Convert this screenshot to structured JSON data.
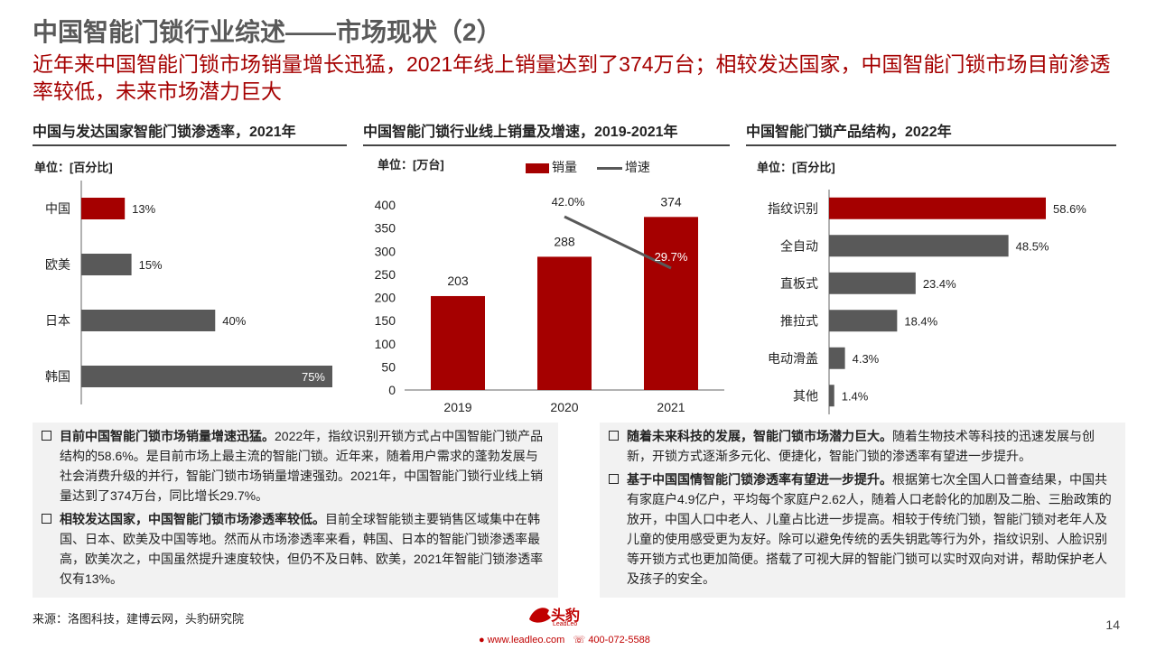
{
  "header": {
    "title": "中国智能门锁行业综述——市场现状（2）",
    "subtitle": "近年来中国智能门锁市场销量增长迅猛，2021年线上销量达到了374万台；相较发达国家，中国智能门锁市场目前渗透率较低，未来市场潜力巨大"
  },
  "colors": {
    "accent": "#a50000",
    "gray_bar": "#595959",
    "box_bg": "#f2f2f2"
  },
  "chart_data": [
    {
      "type": "bar",
      "orientation": "horizontal",
      "title": "中国与发达国家智能门锁渗透率，2021年",
      "unit_label": "单位：[百分比]",
      "categories": [
        "中国",
        "欧美",
        "日本",
        "韩国"
      ],
      "values": [
        13,
        15,
        40,
        75
      ],
      "value_labels": [
        "13%",
        "15%",
        "40%",
        "75%"
      ],
      "highlight_index": 0,
      "xlim": [
        0,
        75
      ]
    },
    {
      "type": "bar+line",
      "title": "中国智能门锁行业线上销量及增速，2019-2021年",
      "unit_label": "单位：[万台]",
      "categories": [
        "2019",
        "2020",
        "2021"
      ],
      "series": [
        {
          "name": "销量",
          "type": "bar",
          "values": [
            203,
            288,
            374
          ],
          "value_labels": [
            "203",
            "288",
            "374"
          ]
        },
        {
          "name": "增速",
          "type": "line",
          "x": [
            "2020",
            "2021"
          ],
          "values": [
            42.0,
            29.7
          ],
          "value_labels": [
            "42.0%",
            "29.7%"
          ]
        }
      ],
      "yticks": [
        "0",
        "50",
        "100",
        "150",
        "200",
        "250",
        "300",
        "350",
        "400"
      ],
      "ylim": [
        0,
        400
      ]
    },
    {
      "type": "bar",
      "orientation": "horizontal",
      "title": "中国智能门锁产品结构，2022年",
      "unit_label": "单位：[百分比]",
      "categories": [
        "指纹识别",
        "全自动",
        "直板式",
        "推拉式",
        "电动滑盖",
        "其他"
      ],
      "values": [
        58.6,
        48.5,
        23.4,
        18.4,
        4.3,
        1.4
      ],
      "value_labels": [
        "58.6%",
        "48.5%",
        "23.4%",
        "18.4%",
        "4.3%",
        "1.4%"
      ],
      "highlight_index": 0,
      "xlim": [
        0,
        58.6
      ]
    }
  ],
  "text_left": [
    {
      "bold": "目前中国智能门锁市场销量增速迅猛。",
      "body": "2022年，指纹识别开锁方式占中国智能门锁产品结构的58.6%。是目前市场上最主流的智能门锁。近年来，随着用户需求的蓬勃发展与社会消费升级的并行，智能门锁市场销量增速强劲。2021年，中国智能门锁行业线上销量达到了374万台，同比增长29.7%。"
    },
    {
      "bold": "相较发达国家，中国智能门锁市场渗透率较低。",
      "body": "目前全球智能锁主要销售区域集中在韩国、日本、欧美及中国等地。然而从市场渗透率来看，韩国、日本的智能门锁渗透率最高，欧美次之，中国虽然提升速度较快，但仍不及日韩、欧美，2021年智能门锁渗透率仅有13%。"
    }
  ],
  "text_right": [
    {
      "bold": "随着未来科技的发展，智能门锁市场潜力巨大。",
      "body": "随着生物技术等科技的迅速发展与创新，开锁方式逐渐多元化、便捷化，智能门锁的渗透率有望进一步提升。"
    },
    {
      "bold": "基于中国国情智能门锁渗透率有望进一步提升。",
      "body": "根据第七次全国人口普查结果，中国共有家庭户4.9亿户，平均每个家庭户2.62人，随着人口老龄化的加剧及二胎、三胎政策的放开，中国人口中老人、儿童占比进一步提高。相较于传统门锁，智能门锁对老年人及儿童的使用感受更为友好。除可以避免传统的丢失钥匙等行为外，指纹识别、人脸识别等开锁方式也更加简便。搭载了可视大屏的智能门锁可以实时双向对讲，帮助保护老人及孩子的安全。"
    }
  ],
  "footer": {
    "source": "来源：洛图科技，建博云网，头豹研究院",
    "page_number": "14",
    "logo_text": "头豹",
    "logo_sub": "LeadLeo",
    "website": "www.leadleo.com",
    "phone": "400-072-5588"
  }
}
